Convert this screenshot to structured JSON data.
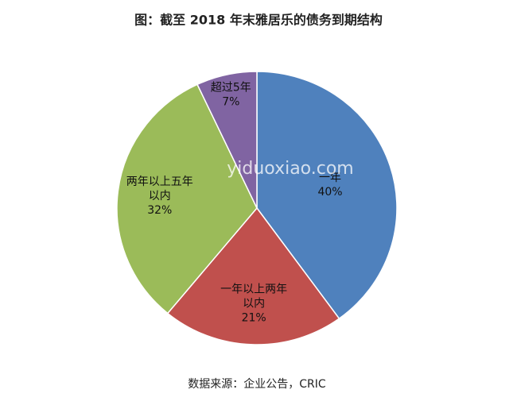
{
  "chart_data": {
    "type": "pie",
    "title": "图：截至 2018 年末雅居乐的债务到期结构",
    "categories": [
      "一年",
      "一年以上两年以内",
      "两年以上五年以内",
      "超过5年"
    ],
    "values": [
      40,
      21,
      32,
      7
    ],
    "value_labels": [
      "40%",
      "21%",
      "32%",
      "7%"
    ],
    "colors": [
      "#4f81bd",
      "#c0504d",
      "#9bbb59",
      "#8064a2"
    ],
    "source": "数据来源：企业公告，CRIC",
    "watermark": "yiduoxiao.com"
  }
}
